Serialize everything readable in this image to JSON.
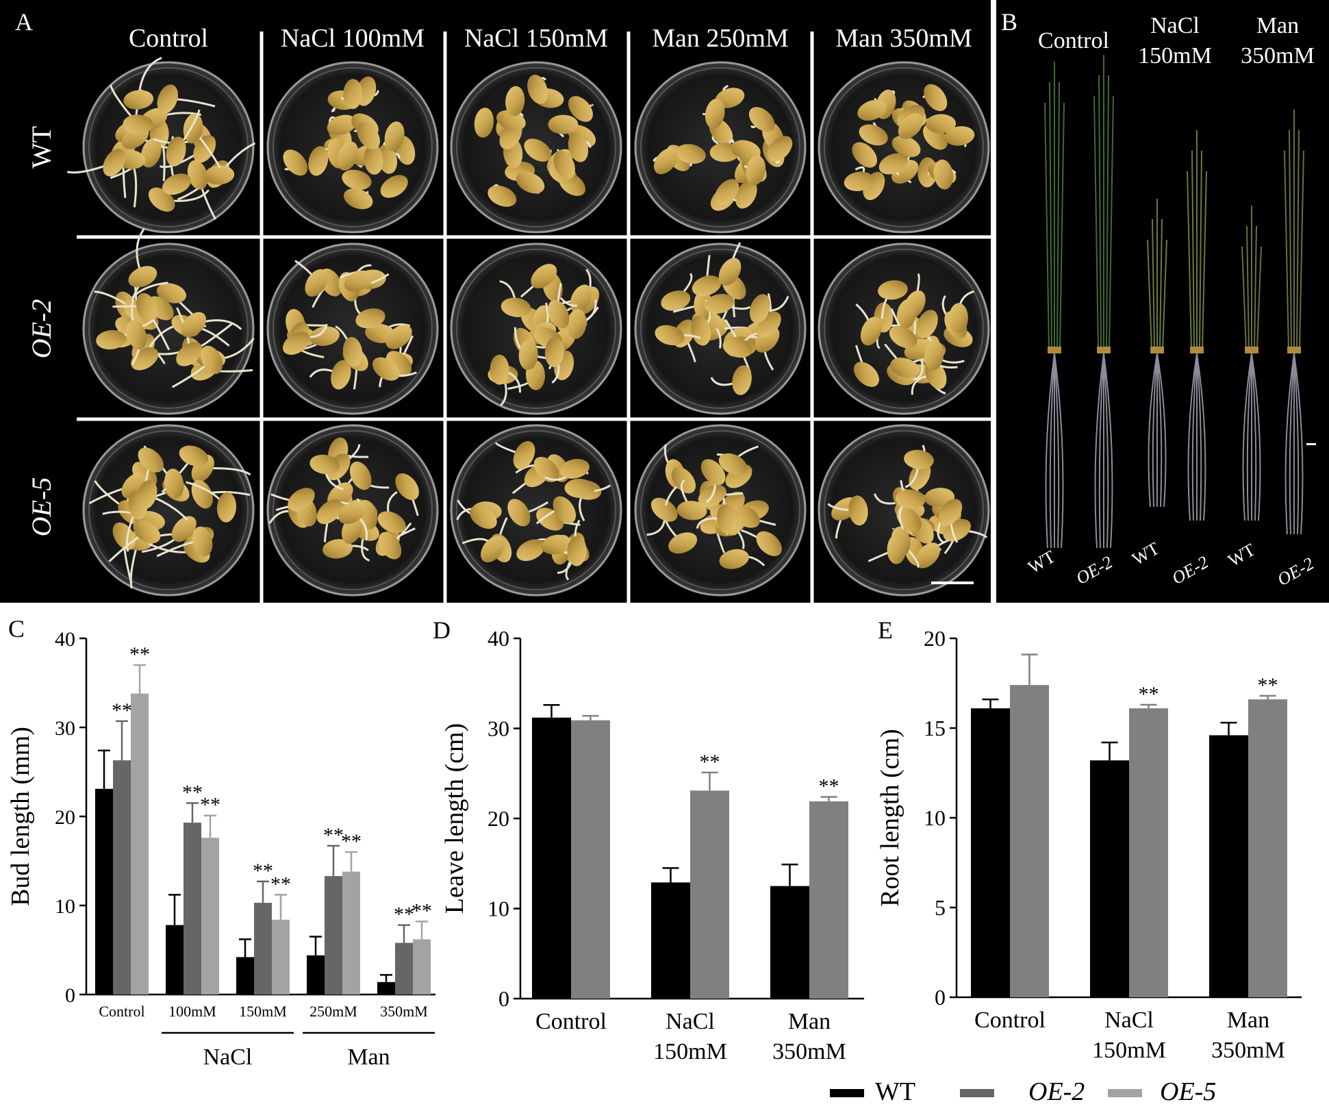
{
  "panel_a": {
    "letter": "A",
    "columns": [
      "Control",
      "NaCl 100mM",
      "NaCl 150mM",
      "Man 250mM",
      "Man 350mM"
    ],
    "rows": [
      "WT",
      "OE-2",
      "OE-5"
    ]
  },
  "panel_b": {
    "letter": "B",
    "conditions": [
      {
        "line1": "Control",
        "line2": ""
      },
      {
        "line1": "NaCl",
        "line2": "150mM"
      },
      {
        "line1": "Man",
        "line2": "350mM"
      }
    ],
    "plant_labels": [
      "WT",
      "OE-2",
      "WT",
      "OE-2",
      "WT",
      "OE-2"
    ]
  },
  "legend": {
    "items": [
      {
        "label": "WT",
        "color": "#000000",
        "italic": false
      },
      {
        "label": "OE-2",
        "color": "#666666",
        "italic": true
      },
      {
        "label": "OE-5",
        "color": "#a3a3a3",
        "italic": true
      }
    ]
  },
  "chart_data": [
    {
      "panel": "C",
      "type": "bar",
      "ylabel": "Bud length (mm)",
      "ylim": [
        0,
        40
      ],
      "yticks": [
        0,
        10,
        20,
        30,
        40
      ],
      "categories": [
        "Control",
        "100mM",
        "150mM",
        "250mM",
        "350mM"
      ],
      "groups": [
        {
          "label": "NaCl",
          "from": 1,
          "to": 2
        },
        {
          "label": "Man",
          "from": 3,
          "to": 4
        }
      ],
      "significance": "**",
      "series": [
        {
          "name": "WT",
          "color": "#000000",
          "values": [
            23.1,
            7.8,
            4.2,
            4.4,
            1.4
          ],
          "errors": [
            4.3,
            3.4,
            2.0,
            2.1,
            0.8
          ],
          "sig": [
            false,
            false,
            false,
            false,
            false
          ]
        },
        {
          "name": "OE-2",
          "color": "#666666",
          "values": [
            26.3,
            19.3,
            10.3,
            13.3,
            5.8
          ],
          "errors": [
            4.4,
            2.2,
            2.4,
            3.4,
            2.0
          ],
          "sig": [
            true,
            true,
            true,
            true,
            true
          ]
        },
        {
          "name": "OE-5",
          "color": "#a3a3a3",
          "values": [
            33.8,
            17.6,
            8.4,
            13.8,
            6.2
          ],
          "errors": [
            3.2,
            2.5,
            2.8,
            2.2,
            2.0
          ],
          "sig": [
            true,
            true,
            true,
            true,
            true
          ]
        }
      ]
    },
    {
      "panel": "D",
      "type": "bar",
      "ylabel": "Leave length (cm)",
      "ylim": [
        0,
        40
      ],
      "yticks": [
        0,
        10,
        20,
        30,
        40
      ],
      "categories": [
        "Control",
        "NaCl\n150mM",
        "Man\n350mM"
      ],
      "significance": "**",
      "series": [
        {
          "name": "WT",
          "color": "#000000",
          "values": [
            31.2,
            12.9,
            12.5
          ],
          "errors": [
            1.4,
            1.6,
            2.4
          ],
          "sig": [
            false,
            false,
            false
          ]
        },
        {
          "name": "OE-2",
          "color": "#808080",
          "values": [
            30.9,
            23.1,
            21.9
          ],
          "errors": [
            0.5,
            2.0,
            0.5
          ],
          "sig": [
            false,
            true,
            true
          ]
        }
      ]
    },
    {
      "panel": "E",
      "type": "bar",
      "ylabel": "Root length (cm)",
      "ylim": [
        0,
        20
      ],
      "yticks": [
        0,
        5,
        10,
        15,
        20
      ],
      "categories": [
        "Control",
        "NaCl\n150mM",
        "Man\n350mM"
      ],
      "significance": "**",
      "series": [
        {
          "name": "WT",
          "color": "#000000",
          "values": [
            16.1,
            13.2,
            14.6
          ],
          "errors": [
            0.5,
            1.0,
            0.7
          ],
          "sig": [
            false,
            false,
            false
          ]
        },
        {
          "name": "OE-2",
          "color": "#808080",
          "values": [
            17.4,
            16.1,
            16.6
          ],
          "errors": [
            1.7,
            0.2,
            0.2
          ],
          "sig": [
            false,
            true,
            true
          ]
        }
      ]
    }
  ]
}
